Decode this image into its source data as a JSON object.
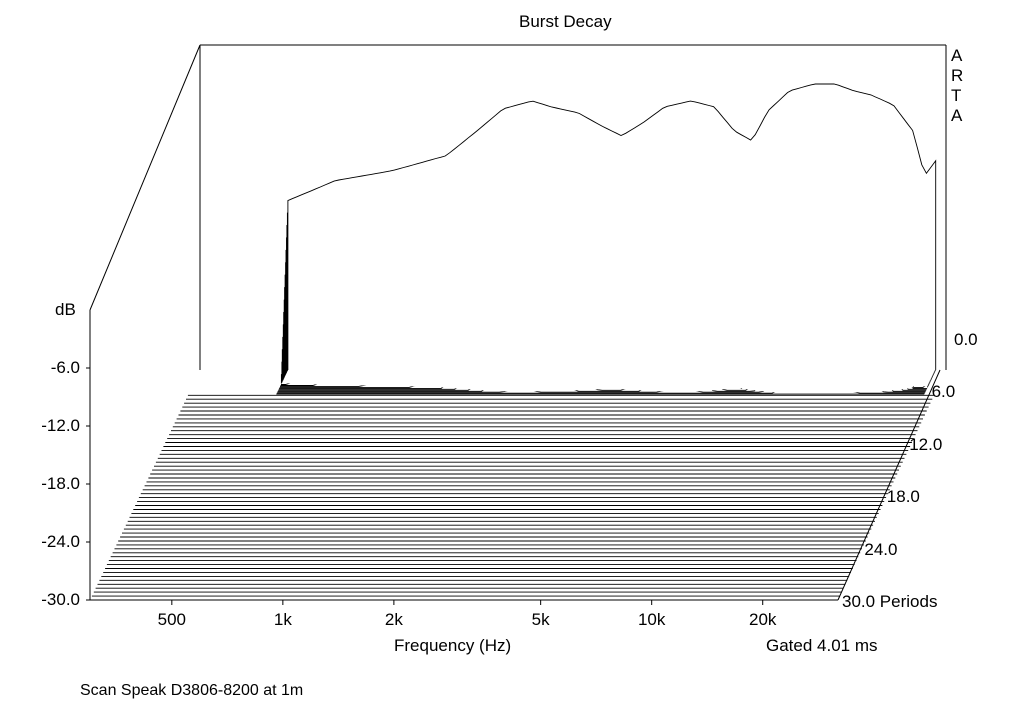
{
  "chart_data": {
    "type": "waterfall",
    "title": "Burst Decay",
    "watermark": "ARTA",
    "xlabel": "Frequency (Hz)",
    "ylabel": "dB",
    "zlabel": "Periods",
    "x_scale": "log",
    "xlim": [
      300,
      32000
    ],
    "ylim": [
      -30,
      0
    ],
    "zlim": [
      0,
      30
    ],
    "x_ticks": [
      500,
      1000,
      2000,
      5000,
      10000,
      20000
    ],
    "x_tick_labels": [
      "500",
      "1k",
      "2k",
      "5k",
      "10k",
      "20k"
    ],
    "y_ticks": [
      -6,
      -12,
      -18,
      -24,
      -30
    ],
    "y_tick_labels": [
      "-6.0",
      "-12.0",
      "-18.0",
      "-24.0",
      "-30.0"
    ],
    "z_tick_labels": [
      "0.0",
      "6.0",
      "12.0",
      "18.0",
      "24.0",
      "30.0 Periods"
    ],
    "gate_note": "Gated 4.01 ms",
    "caption": "Scan Speak D3806-8200 at 1m",
    "colors": {
      "line": "#000000",
      "background": "#ffffff"
    },
    "initial_response": {
      "freq": [
        520,
        700,
        1000,
        1400,
        1700,
        2000,
        2400,
        2700,
        3200,
        3700,
        4200,
        4800,
        5500,
        6500,
        7500,
        8500,
        9500,
        10500,
        12000,
        14000,
        16000,
        18000,
        20000,
        23000,
        26000,
        28000,
        30000
      ],
      "level": [
        -13,
        -11,
        -10,
        -8.5,
        -6,
        -3.8,
        -3,
        -3.6,
        -4.2,
        -5.5,
        -6.5,
        -5.2,
        -3.6,
        -3.0,
        -3.6,
        -6.0,
        -7.0,
        -4.0,
        -2.0,
        -1.3,
        -1.3,
        -2.0,
        -2.4,
        -3.4,
        -6.0,
        -10.5,
        -9.0
      ]
    }
  }
}
